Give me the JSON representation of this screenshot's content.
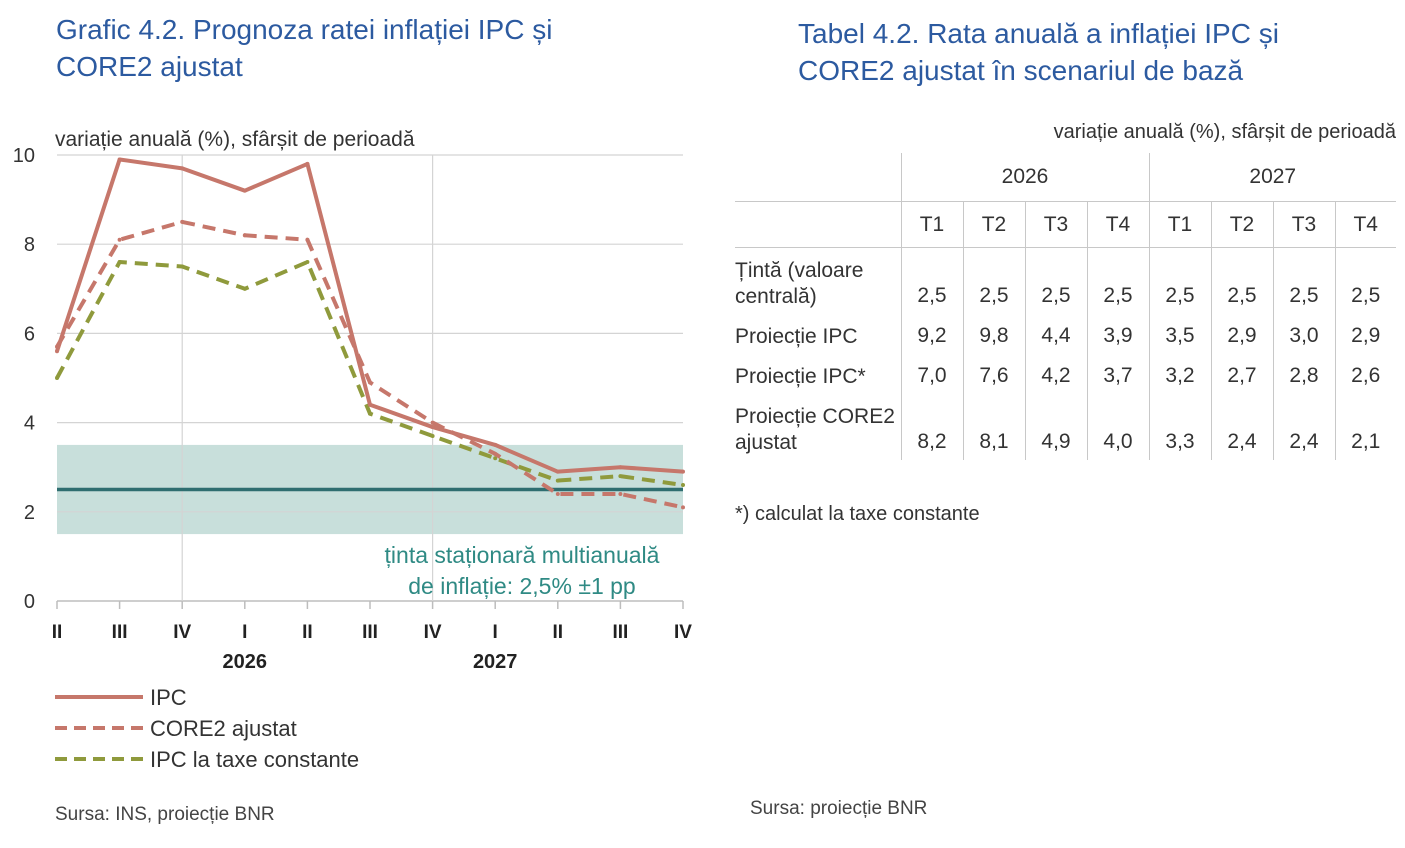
{
  "left_panel": {
    "title_lines": [
      "Grafic 4.2. Prognoza ratei inflației IPC și",
      "CORE2 ajustat"
    ],
    "source": "Sursa: INS, proiecție BNR"
  },
  "right_panel": {
    "title_lines": [
      "Tabel 4.2. Rata anuală a inflației IPC și",
      "CORE2 ajustat în scenariul de bază"
    ],
    "unit": "variație anuală (%), sfârșit de perioadă",
    "years": [
      "2026",
      "2027"
    ],
    "quarters": [
      "T1",
      "T2",
      "T3",
      "T4",
      "T1",
      "T2",
      "T3",
      "T4"
    ],
    "rows": [
      {
        "label": "Țintă (valoare centrală)",
        "values": [
          "2,5",
          "2,5",
          "2,5",
          "2,5",
          "2,5",
          "2,5",
          "2,5",
          "2,5"
        ]
      },
      {
        "label": "Proiecție IPC",
        "values": [
          "9,2",
          "9,8",
          "4,4",
          "3,9",
          "3,5",
          "2,9",
          "3,0",
          "2,9"
        ]
      },
      {
        "label": "Proiecție IPC*",
        "values": [
          "7,0",
          "7,6",
          "4,2",
          "3,7",
          "3,2",
          "2,7",
          "2,8",
          "2,6"
        ]
      },
      {
        "label": "Proiecție CORE2 ajustat",
        "values": [
          "8,2",
          "8,1",
          "4,9",
          "4,0",
          "3,3",
          "2,4",
          "2,4",
          "2,1"
        ]
      }
    ],
    "footnote": "*) calculat la taxe constante",
    "source": "Sursa: proiecție BNR"
  },
  "chart_data": {
    "type": "line",
    "ylabel": "variație anuală (%), sfârșit de perioadă",
    "ylim": [
      0,
      10
    ],
    "yticks": [
      "0",
      "2",
      "4",
      "6",
      "8",
      "10"
    ],
    "grid": true,
    "categories": [
      "II",
      "III",
      "IV",
      "I",
      "II",
      "III",
      "IV",
      "I",
      "II",
      "III",
      "IV"
    ],
    "year_labels": [
      {
        "label": "2026",
        "category_index": 3
      },
      {
        "label": "2027",
        "category_index": 7
      }
    ],
    "series": [
      {
        "name": "IPC",
        "style": "solid",
        "color": "#c6776b",
        "values": [
          5.6,
          9.9,
          9.7,
          9.2,
          9.8,
          4.4,
          3.9,
          3.5,
          2.9,
          3.0,
          2.9
        ]
      },
      {
        "name": "CORE2 ajustat",
        "style": "dashed",
        "color": "#c6776b",
        "values": [
          5.7,
          8.1,
          8.5,
          8.2,
          8.1,
          4.9,
          4.0,
          3.3,
          2.4,
          2.4,
          2.1
        ]
      },
      {
        "name": "IPC la taxe constante",
        "style": "dashed",
        "color": "#8f9a3c",
        "values": [
          5.0,
          7.6,
          7.5,
          7.0,
          7.6,
          4.2,
          3.7,
          3.2,
          2.7,
          2.8,
          2.6
        ]
      }
    ],
    "target": {
      "value": 2.5,
      "band": [
        1.5,
        3.5
      ],
      "color": "#2f6e70",
      "band_color": "#c8dfdb"
    },
    "annotation_lines": [
      "ținta staționară multianuală",
      "de inflație: 2,5% ±1 pp"
    ],
    "legend_position": "bottom-left"
  }
}
